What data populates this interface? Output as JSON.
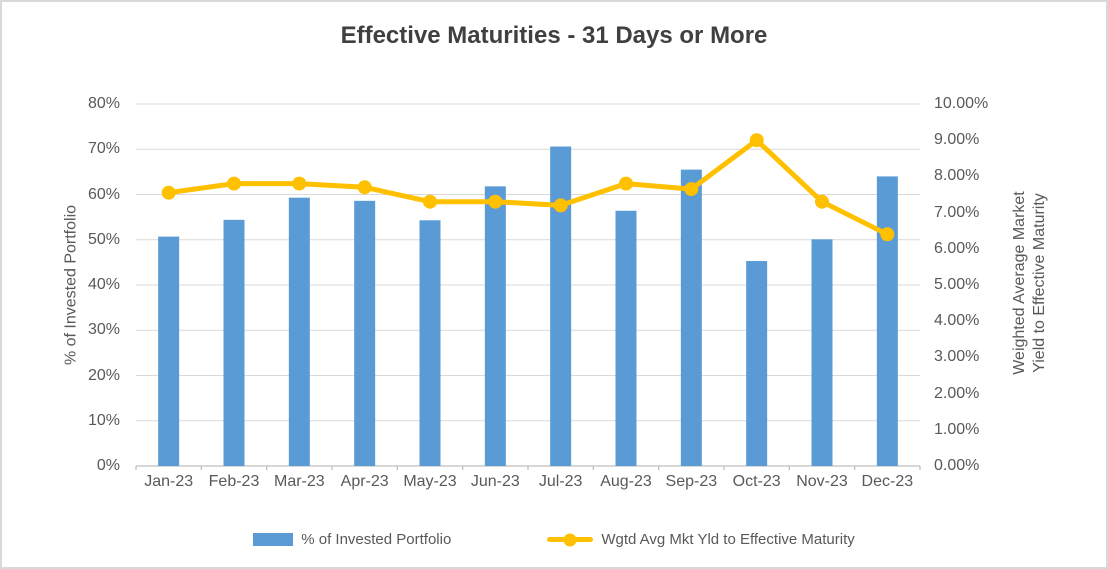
{
  "title": "Effective Maturities - 31 Days or More",
  "colors": {
    "bar": "#5B9BD5",
    "line": "#FFC000",
    "title_text": "#404040",
    "axis_text": "#595959",
    "gridline": "#D9D9D9",
    "axis_line": "#BFBFBF",
    "frame_border": "#D9D9D9",
    "background": "#FFFFFF"
  },
  "chart_data": {
    "type": "combo-bar-line",
    "title": "Effective Maturities - 31 Days or More",
    "categories": [
      "Jan-23",
      "Feb-23",
      "Mar-23",
      "Apr-23",
      "May-23",
      "Jun-23",
      "Jul-23",
      "Aug-23",
      "Sep-23",
      "Oct-23",
      "Nov-23",
      "Dec-23"
    ],
    "series": [
      {
        "name": "% of Invested Portfolio",
        "type": "bar",
        "axis": "left",
        "color": "#5B9BD5",
        "values": [
          50.7,
          54.4,
          59.3,
          58.6,
          54.3,
          61.8,
          70.6,
          56.4,
          65.5,
          45.3,
          50.1,
          64.0
        ]
      },
      {
        "name": "Wgtd Avg Mkt Yld to Effective Maturity",
        "type": "line",
        "axis": "right",
        "color": "#FFC000",
        "values": [
          7.55,
          7.8,
          7.8,
          7.7,
          7.3,
          7.3,
          7.2,
          7.8,
          7.65,
          9.0,
          7.3,
          6.4
        ]
      }
    ],
    "left_axis": {
      "title": "% of Invested Portfolio",
      "min": 0,
      "max": 80,
      "step": 10,
      "tick_labels": [
        "0%",
        "10%",
        "20%",
        "30%",
        "40%",
        "50%",
        "60%",
        "70%",
        "80%"
      ]
    },
    "right_axis": {
      "title": "Weighted Average Market Yield to Effective Maturity",
      "title_lines": [
        "Weighted Average Market",
        "Yield to Effective Maturity"
      ],
      "min": 0,
      "max": 10,
      "step": 1,
      "tick_labels": [
        "0.00%",
        "1.00%",
        "2.00%",
        "3.00%",
        "4.00%",
        "5.00%",
        "6.00%",
        "7.00%",
        "8.00%",
        "9.00%",
        "10.00%"
      ]
    },
    "grid": "horizontal",
    "legend_position": "bottom"
  },
  "legend": {
    "items": [
      {
        "label": "% of Invested Portfolio",
        "marker": "bar-swatch"
      },
      {
        "label": "Wgtd Avg Mkt Yld to Effective Maturity",
        "marker": "line-dot-swatch"
      }
    ]
  }
}
